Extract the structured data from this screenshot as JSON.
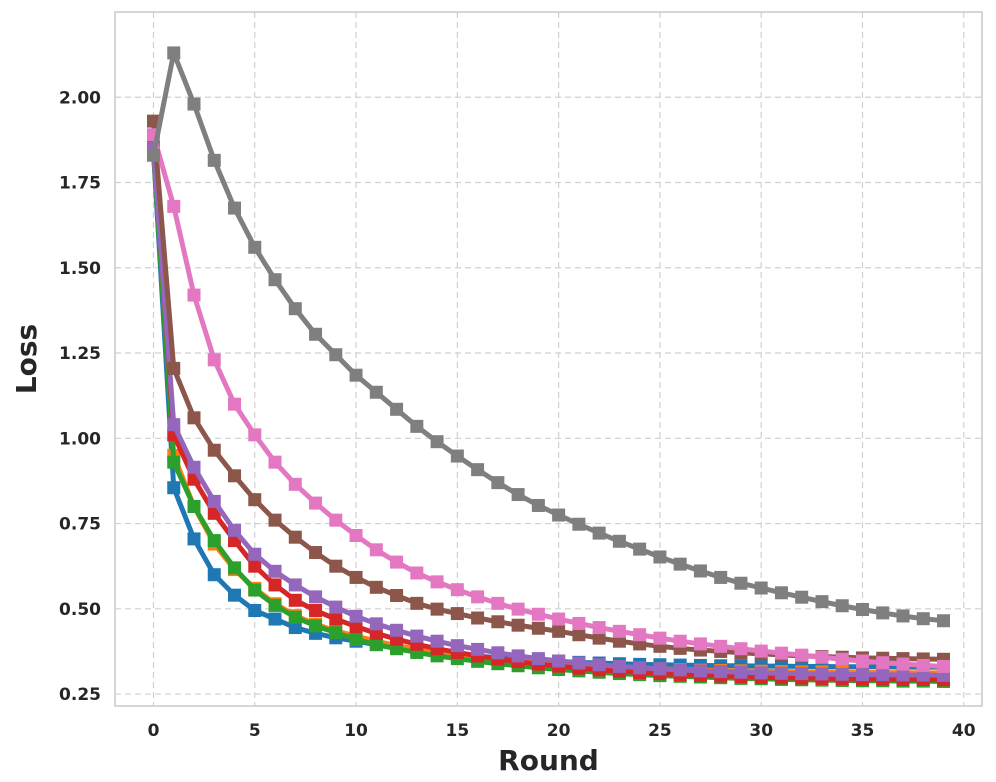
{
  "chart_data": {
    "type": "line",
    "xlabel": "Round",
    "ylabel": "Loss",
    "xlim": [
      -1.9,
      40.9
    ],
    "ylim": [
      0.215,
      2.25
    ],
    "xticks": [
      0,
      5,
      10,
      15,
      20,
      25,
      30,
      35,
      40
    ],
    "xtick_labels": [
      "0",
      "5",
      "10",
      "15",
      "20",
      "25",
      "30",
      "35",
      "40"
    ],
    "yticks": [
      0.25,
      0.5,
      0.75,
      1.0,
      1.25,
      1.5,
      1.75,
      2.0
    ],
    "ytick_labels": [
      "0.25",
      "0.50",
      "0.75",
      "1.00",
      "1.25",
      "1.50",
      "1.75",
      "2.00"
    ],
    "grid": true,
    "marker": "square",
    "x": [
      0,
      1,
      2,
      3,
      4,
      5,
      6,
      7,
      8,
      9,
      10,
      11,
      12,
      13,
      14,
      15,
      16,
      17,
      18,
      19,
      20,
      21,
      22,
      23,
      24,
      25,
      26,
      27,
      28,
      29,
      30,
      31,
      32,
      33,
      34,
      35,
      36,
      37,
      38,
      39
    ],
    "series": [
      {
        "color": "#1f77b4",
        "values": [
          1.84,
          0.855,
          0.705,
          0.6,
          0.54,
          0.495,
          0.47,
          0.445,
          0.428,
          0.415,
          0.405,
          0.395,
          0.385,
          0.378,
          0.372,
          0.366,
          0.361,
          0.357,
          0.353,
          0.349,
          0.346,
          0.343,
          0.341,
          0.339,
          0.337,
          0.336,
          0.335,
          0.334,
          0.333,
          0.333,
          0.332,
          0.332,
          0.331,
          0.331,
          0.33,
          0.33,
          0.33,
          0.329,
          0.329,
          0.329
        ]
      },
      {
        "color": "#ff7f0e",
        "values": [
          1.86,
          0.95,
          0.8,
          0.69,
          0.615,
          0.56,
          0.515,
          0.48,
          0.455,
          0.435,
          0.42,
          0.405,
          0.392,
          0.382,
          0.373,
          0.365,
          0.358,
          0.352,
          0.347,
          0.342,
          0.338,
          0.334,
          0.331,
          0.328,
          0.326,
          0.324,
          0.322,
          0.32,
          0.319,
          0.318,
          0.317,
          0.316,
          0.315,
          0.315,
          0.314,
          0.314,
          0.313,
          0.313,
          0.312,
          0.312
        ]
      },
      {
        "color": "#2ca02c",
        "values": [
          1.84,
          0.93,
          0.8,
          0.7,
          0.62,
          0.555,
          0.51,
          0.475,
          0.45,
          0.43,
          0.41,
          0.395,
          0.383,
          0.372,
          0.362,
          0.354,
          0.346,
          0.339,
          0.333,
          0.327,
          0.322,
          0.318,
          0.314,
          0.31,
          0.307,
          0.304,
          0.302,
          0.3,
          0.298,
          0.296,
          0.295,
          0.293,
          0.292,
          0.291,
          0.29,
          0.289,
          0.289,
          0.288,
          0.288,
          0.287
        ]
      },
      {
        "color": "#d62728",
        "values": [
          1.87,
          1.01,
          0.88,
          0.78,
          0.7,
          0.625,
          0.57,
          0.525,
          0.495,
          0.47,
          0.448,
          0.428,
          0.411,
          0.396,
          0.383,
          0.372,
          0.362,
          0.353,
          0.345,
          0.338,
          0.332,
          0.326,
          0.321,
          0.317,
          0.313,
          0.31,
          0.307,
          0.305,
          0.303,
          0.301,
          0.299,
          0.298,
          0.297,
          0.296,
          0.295,
          0.294,
          0.294,
          0.293,
          0.293,
          0.292
        ]
      },
      {
        "color": "#9467bd",
        "values": [
          1.85,
          1.04,
          0.915,
          0.815,
          0.73,
          0.66,
          0.61,
          0.57,
          0.535,
          0.505,
          0.478,
          0.456,
          0.437,
          0.42,
          0.405,
          0.392,
          0.381,
          0.371,
          0.362,
          0.354,
          0.347,
          0.341,
          0.336,
          0.331,
          0.327,
          0.324,
          0.321,
          0.318,
          0.316,
          0.314,
          0.312,
          0.311,
          0.31,
          0.309,
          0.308,
          0.307,
          0.307,
          0.306,
          0.306,
          0.305
        ]
      },
      {
        "color": "#8c564b",
        "values": [
          1.93,
          1.205,
          1.06,
          0.965,
          0.89,
          0.82,
          0.76,
          0.71,
          0.665,
          0.625,
          0.592,
          0.563,
          0.539,
          0.516,
          0.499,
          0.486,
          0.473,
          0.462,
          0.452,
          0.443,
          0.434,
          0.424,
          0.414,
          0.405,
          0.397,
          0.39,
          0.384,
          0.379,
          0.375,
          0.371,
          0.368,
          0.365,
          0.362,
          0.36,
          0.358,
          0.356,
          0.355,
          0.354,
          0.353,
          0.352
        ]
      },
      {
        "color": "#e377c2",
        "values": [
          1.89,
          1.68,
          1.42,
          1.23,
          1.1,
          1.01,
          0.93,
          0.865,
          0.81,
          0.76,
          0.715,
          0.673,
          0.637,
          0.605,
          0.579,
          0.556,
          0.535,
          0.516,
          0.499,
          0.484,
          0.47,
          0.457,
          0.445,
          0.434,
          0.424,
          0.414,
          0.405,
          0.397,
          0.39,
          0.383,
          0.376,
          0.37,
          0.364,
          0.358,
          0.352,
          0.347,
          0.342,
          0.338,
          0.334,
          0.331
        ]
      },
      {
        "color": "#7f7f7f",
        "values": [
          1.83,
          2.13,
          1.98,
          1.815,
          1.675,
          1.56,
          1.465,
          1.38,
          1.305,
          1.245,
          1.185,
          1.135,
          1.085,
          1.035,
          0.99,
          0.948,
          0.908,
          0.87,
          0.835,
          0.803,
          0.775,
          0.748,
          0.722,
          0.698,
          0.675,
          0.652,
          0.631,
          0.611,
          0.592,
          0.575,
          0.561,
          0.547,
          0.534,
          0.521,
          0.509,
          0.498,
          0.488,
          0.479,
          0.471,
          0.465
        ]
      }
    ]
  }
}
